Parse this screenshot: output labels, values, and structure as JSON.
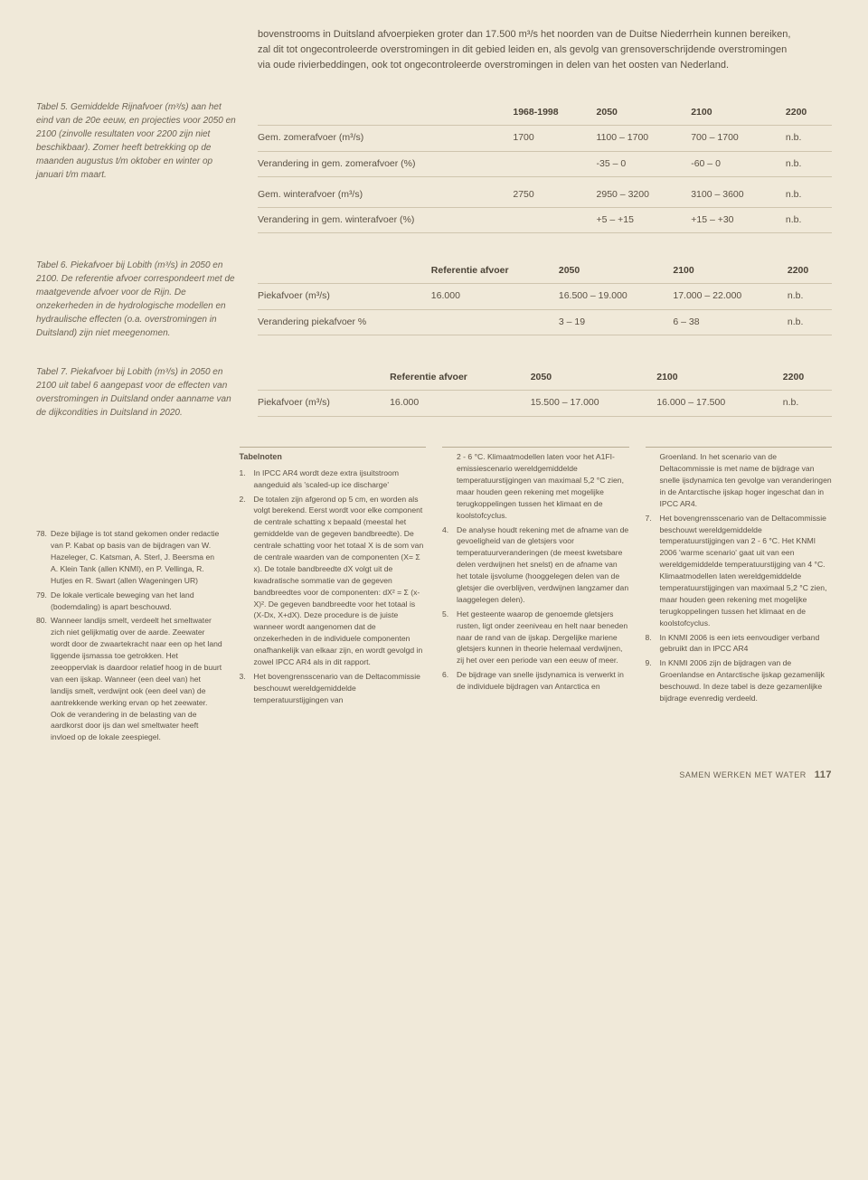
{
  "intro": "bovenstrooms in Duitsland afvoerpieken groter dan 17.500 m³/s het noorden van de Duitse Niederrhein kunnen bereiken, zal dit tot ongecontroleerde overstromingen in dit gebied leiden en, als gevolg van grensoverschrijdende overstromingen via oude rivierbeddingen, ook tot ongecontroleerde overstromingen in delen van het oosten van Nederland.",
  "table5": {
    "caption": "Tabel 5. Gemiddelde Rijnafvoer (m³/s) aan het eind van de 20e eeuw, en projecties voor 2050 en 2100 (zinvolle resultaten voor 2200 zijn niet beschikbaar). Zomer heeft betrekking op de maanden augustus t/m oktober en winter op januari t/m maart.",
    "headers": [
      "",
      "1968-1998",
      "2050",
      "2100",
      "2200"
    ],
    "rows": [
      [
        "Gem. zomerafvoer (m³/s)",
        "1700",
        "1100 – 1700",
        "700 – 1700",
        "n.b."
      ],
      [
        "Verandering in gem. zomerafvoer (%)",
        "",
        "-35 – 0",
        "-60 – 0",
        "n.b."
      ],
      [
        "Gem. winterafvoer (m³/s)",
        "2750",
        "2950 – 3200",
        "3100 – 3600",
        "n.b."
      ],
      [
        "Verandering in gem. winterafvoer (%)",
        "",
        "+5 – +15",
        "+15 – +30",
        "n.b."
      ]
    ]
  },
  "table6": {
    "caption": "Tabel 6. Piekafvoer bij Lobith (m³/s) in 2050 en 2100. De referentie afvoer correspondeert met de maatgevende afvoer voor de Rijn. De onzekerheden in de hydrologische modellen en hydraulische effecten (o.a. overstromingen in Duitsland) zijn niet meegenomen.",
    "headers": [
      "",
      "Referentie afvoer",
      "2050",
      "2100",
      "2200"
    ],
    "rows": [
      [
        "Piekafvoer (m³/s)",
        "16.000",
        "16.500 – 19.000",
        "17.000 – 22.000",
        "n.b."
      ],
      [
        "Verandering piekafvoer %",
        "",
        "3 – 19",
        "6 – 38",
        "n.b."
      ]
    ]
  },
  "table7": {
    "caption": "Tabel 7. Piekafvoer bij Lobith (m³/s) in 2050 en 2100 uit tabel 6 aangepast voor de effecten van overstromingen in Duitsland onder aanname van de dijkcondities in Duitsland in 2020.",
    "headers": [
      "",
      "Referentie afvoer",
      "2050",
      "2100",
      "2200"
    ],
    "rows": [
      [
        "Piekafvoer (m³/s)",
        "16.000",
        "15.500 – 17.000",
        "16.000 – 17.500",
        "n.b."
      ]
    ]
  },
  "leftNotes": [
    {
      "n": "78.",
      "t": "Deze bijlage is tot stand gekomen onder redactie van P. Kabat op basis van de bijdragen van W. Hazeleger, C. Katsman, A. Sterl, J. Beersma en A. Klein Tank (allen KNMI), en P. Vellinga, R. Hutjes en R. Swart (allen Wageningen UR)"
    },
    {
      "n": "79.",
      "t": "De lokale verticale beweging van het land (bodemdaling) is apart beschouwd."
    },
    {
      "n": "80.",
      "t": "Wanneer landijs smelt, verdeelt het smeltwater zich niet gelijkmatig over de aarde. Zeewater wordt door de zwaartekracht naar een op het land liggende ijsmassa toe getrokken. Het zeeoppervlak is daardoor relatief hoog in de buurt van een ijskap. Wanneer (een deel van) het landijs smelt, verdwijnt ook (een deel van) de aantrekkende werking ervan op het zeewater. Ook de verandering in de belasting van de aardkorst door ijs dan wel smeltwater heeft invloed op de lokale zeespiegel."
    }
  ],
  "tabelnotenTitle": "Tabelnoten",
  "tabelnoten": [
    {
      "n": "1.",
      "t": "In IPCC AR4 wordt deze extra ijsuitstroom aangeduid als 'scaled-up ice discharge'"
    },
    {
      "n": "2.",
      "t": "De totalen zijn afgerond op 5 cm, en worden als volgt berekend. Eerst wordt voor elke component de centrale schatting x bepaald (meestal het gemiddelde van de gegeven bandbreedte). De centrale schatting voor het totaal X is de som van de centrale waarden van de componenten (X= Σ x). De totale bandbreedte dX volgt uit de kwadratische sommatie van de gegeven bandbreedtes voor de componenten: dX² = Σ (x-X)². De gegeven bandbreedte voor het totaal is (X-Dx, X+dX). Deze procedure is de juiste wanneer wordt aangenomen dat de onzekerheden in de individuele componenten onafhankelijk van elkaar zijn, en wordt gevolgd in zowel IPCC AR4 als in dit rapport."
    },
    {
      "n": "3.",
      "t": "Het bovengrensscenario van de Deltacommissie beschouwt wereldgemiddelde temperatuurstijgingen van"
    }
  ],
  "col3": [
    {
      "n": "",
      "t": "2 - 6 °C. Klimaatmodellen laten voor het A1FI-emissiescenario wereldgemiddelde temperatuurstijgingen van maximaal 5,2 °C zien, maar houden geen rekening met mogelijke terugkoppelingen tussen het klimaat en de koolstofcyclus."
    },
    {
      "n": "4.",
      "t": "De analyse houdt rekening met de afname van de gevoeligheid van de gletsjers voor temperatuurveranderingen (de meest kwetsbare delen verdwijnen het snelst) en de afname van het totale ijsvolume (hooggelegen delen van de gletsjer die overblijven, verdwijnen langzamer dan laaggelegen delen)."
    },
    {
      "n": "5.",
      "t": "Het gesteente waarop de genoemde gletsjers rusten, ligt onder zeeniveau en helt naar beneden naar de rand van de ijskap. Dergelijke mariene gletsjers kunnen in theorie helemaal verdwijnen, zij het over een periode van een eeuw of meer."
    },
    {
      "n": "6.",
      "t": "De bijdrage van snelle ijsdynamica is verwerkt in de individuele bijdragen van Antarctica en"
    }
  ],
  "col4": [
    {
      "n": "",
      "t": "Groenland. In het scenario van de Deltacommissie is met name de bijdrage van snelle ijsdynamica ten gevolge van veranderingen in de Antarctische ijskap hoger ingeschat dan in IPCC AR4."
    },
    {
      "n": "7.",
      "t": "Het bovengrensscenario van de Deltacommissie beschouwt wereldgemiddelde temperatuurstijgingen van 2 - 6 °C. Het KNMI 2006 'warme scenario' gaat uit van een wereldgemiddelde temperatuurstijging van 4 °C. Klimaatmodellen laten wereldgemiddelde temperatuurstijgingen van maximaal 5,2 °C zien, maar houden geen rekening met mogelijke terugkoppelingen tussen het klimaat en de koolstofcyclus."
    },
    {
      "n": "8.",
      "t": "In KNMI 2006 is een iets eenvoudiger verband gebruikt dan in IPCC AR4"
    },
    {
      "n": "9.",
      "t": "In KNMI 2006 zijn de bijdragen van de Groenlandse en Antarctische ijskap gezamenlijk beschouwd. In deze tabel is deze gezamenlijke bijdrage evenredig verdeeld."
    }
  ],
  "footer": {
    "text": "SAMEN WERKEN MET WATER",
    "page": "117"
  }
}
